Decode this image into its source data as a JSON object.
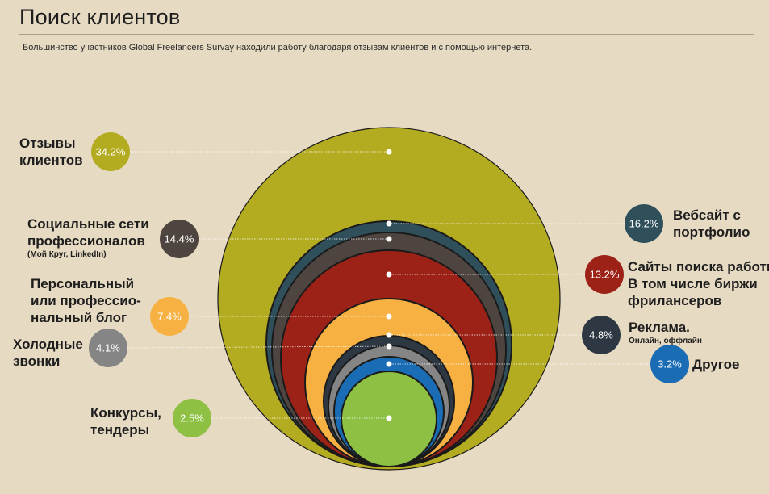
{
  "title": "Поиск клиентов",
  "subtitle": "Большинство участников Global Freelancers Survay находили работу благодаря отзывам клиентов и с помощью интернета.",
  "colors": {
    "background": "#e6dac2",
    "reviews": "#b3ab20",
    "portfolio": "#2f4f5b",
    "social": "#4e4540",
    "jobsites": "#9c2117",
    "blog": "#f7b142",
    "ads": "#2e3842",
    "cold": "#858585",
    "other": "#1a6db4",
    "contests": "#8dc043"
  },
  "chart_data": {
    "type": "nested-bubble",
    "title": "Поиск клиентов",
    "unit": "%",
    "series": [
      {
        "key": "reviews",
        "label_lines": [
          "Отзывы",
          "клиентов"
        ],
        "note": "",
        "value": 34.2,
        "value_label": "34.2%"
      },
      {
        "key": "portfolio",
        "label_lines": [
          "Вебсайт с",
          "портфолио"
        ],
        "note": "",
        "value": 16.2,
        "value_label": "16.2%"
      },
      {
        "key": "social",
        "label_lines": [
          "Социальные сети",
          "профессионалов"
        ],
        "note": "(Мой Круг, LinkedIn)",
        "value": 14.4,
        "value_label": "14.4%"
      },
      {
        "key": "jobsites",
        "label_lines": [
          "Сайты поиска работы",
          "В том числе биржи",
          "фрилансеров"
        ],
        "note": "",
        "value": 13.2,
        "value_label": "13.2%"
      },
      {
        "key": "blog",
        "label_lines": [
          "Персональный",
          "или профессио-",
          "нальный блог"
        ],
        "note": "",
        "value": 7.4,
        "value_label": "7.4%"
      },
      {
        "key": "ads",
        "label_lines": [
          "Реклама."
        ],
        "note": "Онлайн, оффлайн",
        "value": 4.8,
        "value_label": "4.8%"
      },
      {
        "key": "cold",
        "label_lines": [
          "Холодные",
          "звонки"
        ],
        "note": "",
        "value": 4.1,
        "value_label": "4.1%"
      },
      {
        "key": "other",
        "label_lines": [
          "Другое"
        ],
        "note": "",
        "value": 3.2,
        "value_label": "3.2%"
      },
      {
        "key": "contests",
        "label_lines": [
          "Конкурсы,",
          "тендеры"
        ],
        "note": "",
        "value": 2.5,
        "value_label": "2.5%"
      }
    ]
  }
}
